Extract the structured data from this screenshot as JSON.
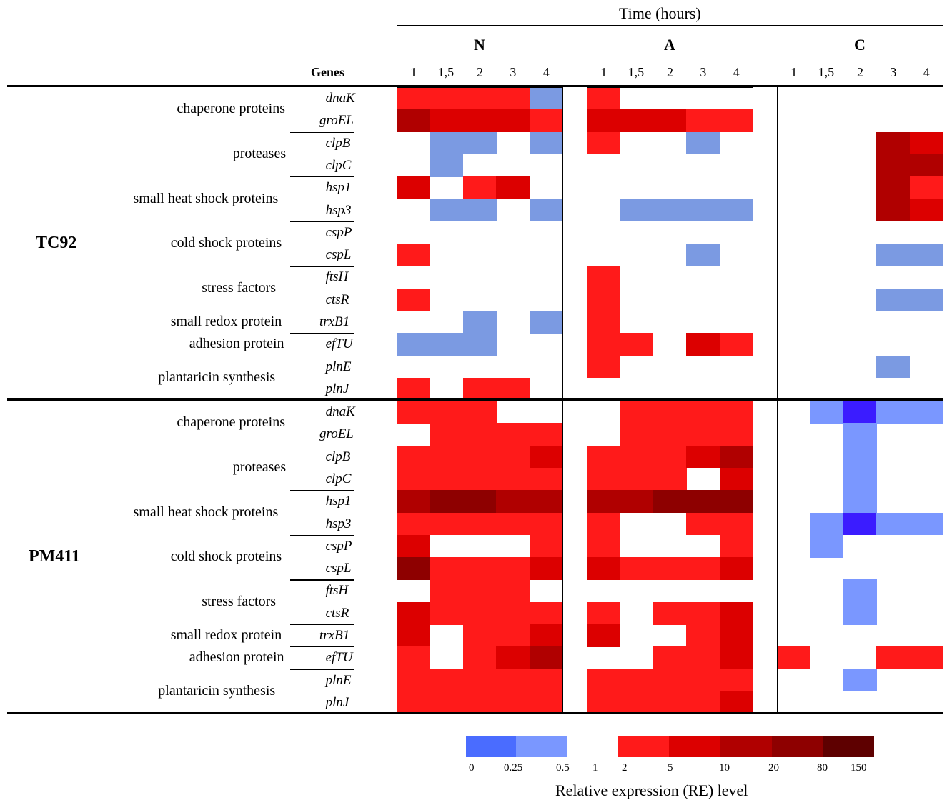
{
  "colors": {
    "0": "#ffffff",
    "d1": "#7b9ae2",
    "d2": "#7a97ff",
    "d3": "#3b1cff",
    "u1": "#ff1a1a",
    "u2": "#dc0000",
    "u3": "#b00000",
    "u4": "#8e0000",
    "u5": "#5e0000"
  },
  "chart_data": {
    "type": "heatmap",
    "title": "Time (hours)",
    "column_header": "Genes",
    "conditions": [
      "N",
      "A",
      "C"
    ],
    "timepoints": [
      "1",
      "1,5",
      "2",
      "3",
      "4"
    ],
    "strains": [
      {
        "name": "TC92",
        "groups": [
          {
            "label": "chaperone proteins",
            "genes": [
              "dnaK",
              "groEL"
            ]
          },
          {
            "label": "proteases",
            "genes": [
              "clpB",
              "clpC"
            ]
          },
          {
            "label": "small heat shock proteins",
            "genes": [
              "hsp1",
              "hsp3"
            ]
          },
          {
            "label": "cold shock proteins",
            "genes": [
              "cspP",
              "cspL"
            ]
          },
          {
            "label": "stress factors",
            "genes": [
              "ftsH",
              "ctsR"
            ]
          },
          {
            "label": "small redox protein",
            "genes": [
              "trxB1"
            ]
          },
          {
            "label": "adhesion protein",
            "genes": [
              "efTU"
            ]
          },
          {
            "label": "plantaricin synthesis",
            "genes": [
              "plnE",
              "plnJ"
            ]
          }
        ],
        "rows": [
          {
            "gene": "dnaK",
            "N": [
              "u1",
              "u1",
              "u1",
              "u1",
              "d1"
            ],
            "A": [
              "u1",
              "0",
              "0",
              "0",
              "0"
            ],
            "C": [
              "0",
              "0",
              "0",
              "0",
              "0"
            ]
          },
          {
            "gene": "groEL",
            "N": [
              "u3",
              "u2",
              "u2",
              "u2",
              "u1"
            ],
            "A": [
              "u2",
              "u2",
              "u2",
              "u1",
              "u1"
            ],
            "C": [
              "0",
              "0",
              "0",
              "0",
              "0"
            ]
          },
          {
            "gene": "clpB",
            "N": [
              "0",
              "d1",
              "d1",
              "0",
              "d1"
            ],
            "A": [
              "u1",
              "0",
              "0",
              "d1",
              "0"
            ],
            "C": [
              "0",
              "0",
              "0",
              "u3",
              "u2"
            ]
          },
          {
            "gene": "clpC",
            "N": [
              "0",
              "d1",
              "0",
              "0",
              "0"
            ],
            "A": [
              "0",
              "0",
              "0",
              "0",
              "0"
            ],
            "C": [
              "0",
              "0",
              "0",
              "u3",
              "u3"
            ]
          },
          {
            "gene": "hsp1",
            "N": [
              "u2",
              "0",
              "u1",
              "u2",
              "0"
            ],
            "A": [
              "0",
              "0",
              "0",
              "0",
              "0"
            ],
            "C": [
              "0",
              "0",
              "0",
              "u3",
              "u1"
            ]
          },
          {
            "gene": "hsp3",
            "N": [
              "0",
              "d1",
              "d1",
              "0",
              "d1"
            ],
            "A": [
              "0",
              "d1",
              "d1",
              "d1",
              "d1"
            ],
            "C": [
              "0",
              "0",
              "0",
              "u3",
              "u2"
            ]
          },
          {
            "gene": "cspP",
            "N": [
              "0",
              "0",
              "0",
              "0",
              "0"
            ],
            "A": [
              "0",
              "0",
              "0",
              "0",
              "0"
            ],
            "C": [
              "0",
              "0",
              "0",
              "0",
              "0"
            ]
          },
          {
            "gene": "cspL",
            "N": [
              "u1",
              "0",
              "0",
              "0",
              "0"
            ],
            "A": [
              "0",
              "0",
              "0",
              "d1",
              "0"
            ],
            "C": [
              "0",
              "0",
              "0",
              "d1",
              "d1"
            ]
          },
          {
            "gene": "ftsH",
            "N": [
              "0",
              "0",
              "0",
              "0",
              "0"
            ],
            "A": [
              "u1",
              "0",
              "0",
              "0",
              "0"
            ],
            "C": [
              "0",
              "0",
              "0",
              "0",
              "0"
            ]
          },
          {
            "gene": "ctsR",
            "N": [
              "u1",
              "0",
              "0",
              "0",
              "0"
            ],
            "A": [
              "u1",
              "0",
              "0",
              "0",
              "0"
            ],
            "C": [
              "0",
              "0",
              "0",
              "d1",
              "d1"
            ]
          },
          {
            "gene": "trxB1",
            "N": [
              "0",
              "0",
              "d1",
              "0",
              "d1"
            ],
            "A": [
              "u1",
              "0",
              "0",
              "0",
              "0"
            ],
            "C": [
              "0",
              "0",
              "0",
              "0",
              "0"
            ]
          },
          {
            "gene": "efTU",
            "N": [
              "d1",
              "d1",
              "d1",
              "0",
              "0"
            ],
            "A": [
              "u1",
              "u1",
              "0",
              "u2",
              "u1"
            ],
            "C": [
              "0",
              "0",
              "0",
              "0",
              "0"
            ]
          },
          {
            "gene": "plnE",
            "N": [
              "0",
              "0",
              "0",
              "0",
              "0"
            ],
            "A": [
              "u1",
              "0",
              "0",
              "0",
              "0"
            ],
            "C": [
              "0",
              "0",
              "0",
              "d1",
              "0"
            ]
          },
          {
            "gene": "plnJ",
            "N": [
              "u1",
              "0",
              "u1",
              "u1",
              "0"
            ],
            "A": [
              "0",
              "0",
              "0",
              "0",
              "0"
            ],
            "C": [
              "0",
              "0",
              "0",
              "0",
              "0"
            ]
          }
        ]
      },
      {
        "name": "PM411",
        "groups": [
          {
            "label": "chaperone proteins",
            "genes": [
              "dnaK",
              "groEL"
            ]
          },
          {
            "label": "proteases",
            "genes": [
              "clpB",
              "clpC"
            ]
          },
          {
            "label": "small heat shock proteins",
            "genes": [
              "hsp1",
              "hsp3"
            ]
          },
          {
            "label": "cold shock proteins",
            "genes": [
              "cspP",
              "cspL"
            ]
          },
          {
            "label": "stress factors",
            "genes": [
              "ftsH",
              "ctsR"
            ]
          },
          {
            "label": "small redox protein",
            "genes": [
              "trxB1"
            ]
          },
          {
            "label": "adhesion protein",
            "genes": [
              "efTU"
            ]
          },
          {
            "label": "plantaricin synthesis",
            "genes": [
              "plnE",
              "plnJ"
            ]
          }
        ],
        "rows": [
          {
            "gene": "dnaK",
            "N": [
              "u1",
              "u1",
              "u1",
              "0",
              "0"
            ],
            "A": [
              "0",
              "u1",
              "u1",
              "u1",
              "u1"
            ],
            "C": [
              "0",
              "d2",
              "d3",
              "d2",
              "d2"
            ]
          },
          {
            "gene": "groEL",
            "N": [
              "0",
              "u1",
              "u1",
              "u1",
              "u1"
            ],
            "A": [
              "0",
              "u1",
              "u1",
              "u1",
              "u1"
            ],
            "C": [
              "0",
              "0",
              "d2",
              "0",
              "0"
            ]
          },
          {
            "gene": "clpB",
            "N": [
              "u1",
              "u1",
              "u1",
              "u1",
              "u2"
            ],
            "A": [
              "u1",
              "u1",
              "u1",
              "u2",
              "u3"
            ],
            "C": [
              "0",
              "0",
              "d2",
              "0",
              "0"
            ]
          },
          {
            "gene": "clpC",
            "N": [
              "u1",
              "u1",
              "u1",
              "u1",
              "u1"
            ],
            "A": [
              "u1",
              "u1",
              "u1",
              "0",
              "u2"
            ],
            "C": [
              "0",
              "0",
              "d2",
              "0",
              "0"
            ]
          },
          {
            "gene": "hsp1",
            "N": [
              "u3",
              "u4",
              "u4",
              "u3",
              "u3"
            ],
            "A": [
              "u3",
              "u3",
              "u4",
              "u4",
              "u4"
            ],
            "C": [
              "0",
              "0",
              "d2",
              "0",
              "0"
            ]
          },
          {
            "gene": "hsp3",
            "N": [
              "u1",
              "u1",
              "u1",
              "u1",
              "u1"
            ],
            "A": [
              "u1",
              "0",
              "0",
              "u1",
              "u1"
            ],
            "C": [
              "0",
              "d2",
              "d3",
              "d2",
              "d2"
            ]
          },
          {
            "gene": "cspP",
            "N": [
              "u2",
              "0",
              "0",
              "0",
              "u1"
            ],
            "A": [
              "u1",
              "0",
              "0",
              "0",
              "u1"
            ],
            "C": [
              "0",
              "d2",
              "0",
              "0",
              "0"
            ]
          },
          {
            "gene": "cspL",
            "N": [
              "u4",
              "u1",
              "u1",
              "u1",
              "u2"
            ],
            "A": [
              "u2",
              "u1",
              "u1",
              "u1",
              "u2"
            ],
            "C": [
              "0",
              "0",
              "0",
              "0",
              "0"
            ]
          },
          {
            "gene": "ftsH",
            "N": [
              "0",
              "u1",
              "u1",
              "u1",
              "0"
            ],
            "A": [
              "0",
              "0",
              "0",
              "0",
              "0"
            ],
            "C": [
              "0",
              "0",
              "d2",
              "0",
              "0"
            ]
          },
          {
            "gene": "ctsR",
            "N": [
              "u2",
              "u1",
              "u1",
              "u1",
              "u1"
            ],
            "A": [
              "u1",
              "0",
              "u1",
              "u1",
              "u2"
            ],
            "C": [
              "0",
              "0",
              "d2",
              "0",
              "0"
            ]
          },
          {
            "gene": "trxB1",
            "N": [
              "u2",
              "0",
              "u1",
              "u1",
              "u2"
            ],
            "A": [
              "u2",
              "0",
              "0",
              "u1",
              "u2"
            ],
            "C": [
              "0",
              "0",
              "0",
              "0",
              "0"
            ]
          },
          {
            "gene": "efTU",
            "N": [
              "u1",
              "0",
              "u1",
              "u2",
              "u3"
            ],
            "A": [
              "0",
              "0",
              "u1",
              "u1",
              "u2"
            ],
            "C": [
              "u1",
              "0",
              "0",
              "u1",
              "u1"
            ]
          },
          {
            "gene": "plnE",
            "N": [
              "u1",
              "u1",
              "u1",
              "u1",
              "u1"
            ],
            "A": [
              "u1",
              "u1",
              "u1",
              "u1",
              "u1"
            ],
            "C": [
              "0",
              "0",
              "d2",
              "0",
              "0"
            ]
          },
          {
            "gene": "plnJ",
            "N": [
              "u1",
              "u1",
              "u1",
              "u1",
              "u1"
            ],
            "A": [
              "u1",
              "u1",
              "u1",
              "u1",
              "u2"
            ],
            "C": [
              "0",
              "0",
              "0",
              "0",
              "0"
            ]
          }
        ]
      }
    ],
    "legend": {
      "title": "Relative expression (RE) level",
      "down_colors": [
        "#4a6cff",
        "#7a97ff"
      ],
      "up_colors": [
        "#ff1a1a",
        "#dc0000",
        "#b00000",
        "#8e0000",
        "#6e0000",
        "#5e0000"
      ],
      "ticks": [
        "0",
        "0.25",
        "0.5",
        "1",
        "2",
        "5",
        "10",
        "20",
        "80",
        "150"
      ]
    }
  }
}
